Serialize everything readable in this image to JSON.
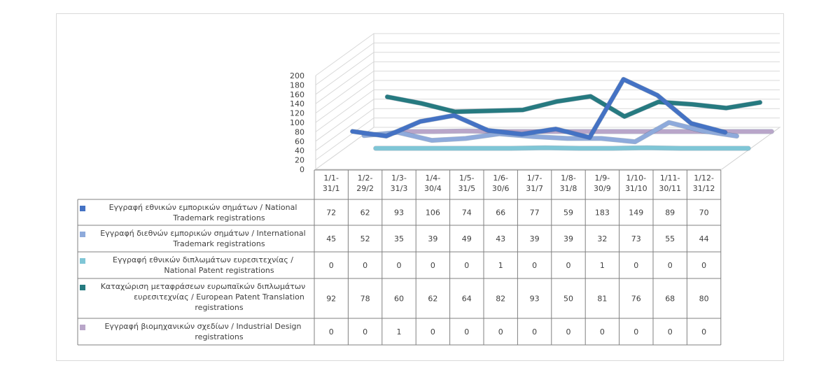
{
  "chart_data": {
    "type": "line",
    "categories": [
      "1/1-\n31/1",
      "1/2-\n29/2",
      "1/3-\n31/3",
      "1/4-\n30/4",
      "1/5-\n31/5",
      "1/6-\n30/6",
      "1/7-\n31/7",
      "1/8-\n31/8",
      "1/9-\n30/9",
      "1/10-\n31/10",
      "1/11-\n30/11",
      "1/12-\n31/12"
    ],
    "series": [
      {
        "name": "Εγγραφή  εθνικών εμπορικών σημάτων  / National Trademark registrations",
        "label_lines": [
          "Εγγραφή  εθνικών εμπορικών σημάτων  / National",
          "Trademark registrations"
        ],
        "color": "#4472c4",
        "values": [
          72,
          62,
          93,
          106,
          74,
          66,
          77,
          59,
          183,
          149,
          89,
          70
        ]
      },
      {
        "name": "Εγγραφή  διεθνών εμπορικών σημάτων  / International Trademark registrations",
        "label_lines": [
          "Εγγραφή  διεθνών εμπορικών σημάτων  / International",
          "Trademark registrations"
        ],
        "color": "#8eaadb",
        "values": [
          45,
          52,
          35,
          39,
          49,
          43,
          39,
          39,
          32,
          73,
          55,
          44
        ]
      },
      {
        "name": "Εγγραφή  εθνικών διπλωμάτων  ευρεσιτεχνίας / National Patent registrations",
        "label_lines": [
          "Εγγραφή  εθνικών διπλωμάτων  ευρεσιτεχνίας /",
          "National Patent registrations"
        ],
        "color": "#7fc6d6",
        "values": [
          0,
          0,
          0,
          0,
          0,
          1,
          0,
          0,
          1,
          0,
          0,
          0
        ]
      },
      {
        "name": "Καταχώριση μεταφράσεων  ευρωπαϊκών διπλωμάτων ευρεσιτεχνίας / European Patent Translation registrations",
        "label_lines": [
          "Καταχώριση μεταφράσεων  ευρωπαϊκών διπλωμάτων",
          "ευρεσιτεχνίας / European Patent Translation",
          "registrations"
        ],
        "color": "#267a80",
        "values": [
          92,
          78,
          60,
          62,
          64,
          82,
          93,
          50,
          81,
          76,
          68,
          80
        ]
      },
      {
        "name": "Εγγραφή  βιομηχανικών σχεδίων / Industrial Design registrations",
        "label_lines": [
          "Εγγραφή  βιομηχανικών σχεδίων / Industrial Design",
          "registrations"
        ],
        "color": "#b9a6c9",
        "values": [
          0,
          0,
          1,
          0,
          0,
          0,
          0,
          0,
          0,
          0,
          0,
          0
        ]
      }
    ],
    "y_ticks": [
      0,
      20,
      40,
      60,
      80,
      100,
      120,
      140,
      160,
      180,
      200
    ],
    "ylim": [
      0,
      200
    ],
    "grid": true,
    "legend": "data-table"
  }
}
